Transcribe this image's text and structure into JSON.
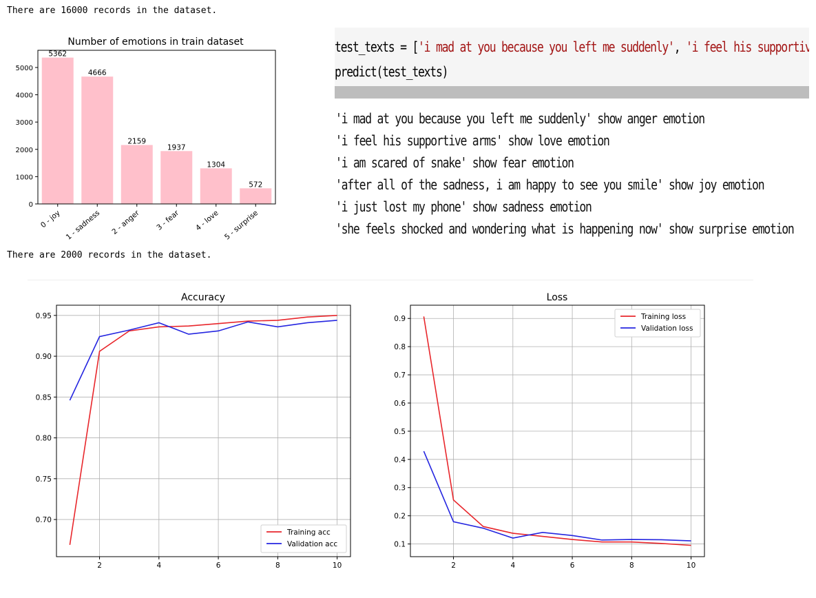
{
  "records_top": "There are 16000 records in the dataset.",
  "records_mid": "There are 2000 records in the dataset.",
  "code": {
    "line1_a": "test_texts = [",
    "line1_s1": "'i mad at you because you left me suddenly'",
    "line1_b": ", ",
    "line1_s2": "'i feel his supportive",
    "line2": "predict(test_texts)"
  },
  "output_lines": [
    "'i mad at you because you left me suddenly' show anger emotion",
    "'i feel his supportive arms' show love emotion",
    "'i am scared of snake' show fear emotion",
    "'after all of the sadness, i am happy to see you smile' show joy emotion",
    "'i just lost my phone' show sadness emotion",
    "'she feels shocked and wondering what is happening now' show surprise emotion"
  ],
  "chart_data": [
    {
      "type": "bar",
      "title": "Number of emotions in train dataset",
      "categories": [
        "0 - joy",
        "1 - sadness",
        "2 - anger",
        "3 - fear",
        "4 - love",
        "5 - surprise"
      ],
      "values": [
        5362,
        4666,
        2159,
        1937,
        1304,
        572
      ],
      "data_labels": [
        "5362",
        "4666",
        "2159",
        "1937",
        "1304",
        "572"
      ],
      "yticks": [
        0,
        1000,
        2000,
        3000,
        4000,
        5000
      ],
      "ylim": [
        0,
        5630
      ],
      "grid": false,
      "bar_color": "#ffc0cb"
    },
    {
      "type": "line",
      "title": "Accuracy",
      "x": [
        1,
        2,
        3,
        4,
        5,
        6,
        7,
        8,
        9,
        10
      ],
      "series": [
        {
          "name": "Training acc",
          "color": "#e8262b",
          "values": [
            0.669,
            0.906,
            0.931,
            0.936,
            0.937,
            0.94,
            0.943,
            0.944,
            0.948,
            0.95
          ]
        },
        {
          "name": "Validation acc",
          "color": "#2425e0",
          "values": [
            0.846,
            0.924,
            0.932,
            0.941,
            0.927,
            0.931,
            0.942,
            0.936,
            0.941,
            0.944
          ]
        }
      ],
      "xticks": [
        2,
        4,
        6,
        8,
        10
      ],
      "yticks": [
        0.7,
        0.75,
        0.8,
        0.85,
        0.9,
        0.95
      ],
      "ytick_labels": [
        "0.70",
        "0.75",
        "0.80",
        "0.85",
        "0.90",
        "0.95"
      ],
      "xlim": [
        0.55,
        10.45
      ],
      "ylim": [
        0.6545,
        0.9625
      ],
      "grid": true,
      "legend_position": "bottom-right"
    },
    {
      "type": "line",
      "title": "Loss",
      "x": [
        1,
        2,
        3,
        4,
        5,
        6,
        7,
        8,
        9,
        10
      ],
      "series": [
        {
          "name": "Training loss",
          "color": "#e8262b",
          "values": [
            0.907,
            0.256,
            0.162,
            0.138,
            0.127,
            0.116,
            0.107,
            0.107,
            0.102,
            0.095
          ]
        },
        {
          "name": "Validation loss",
          "color": "#2425e0",
          "values": [
            0.429,
            0.179,
            0.156,
            0.121,
            0.141,
            0.13,
            0.114,
            0.116,
            0.115,
            0.111
          ]
        }
      ],
      "xticks": [
        2,
        4,
        6,
        8,
        10
      ],
      "yticks": [
        0.1,
        0.2,
        0.3,
        0.4,
        0.5,
        0.6,
        0.7,
        0.8,
        0.9
      ],
      "ytick_labels": [
        "0.1",
        "0.2",
        "0.3",
        "0.4",
        "0.5",
        "0.6",
        "0.7",
        "0.8",
        "0.9"
      ],
      "xlim": [
        0.55,
        10.45
      ],
      "ylim": [
        0.055,
        0.947
      ],
      "grid": true,
      "legend_position": "top-right"
    }
  ]
}
